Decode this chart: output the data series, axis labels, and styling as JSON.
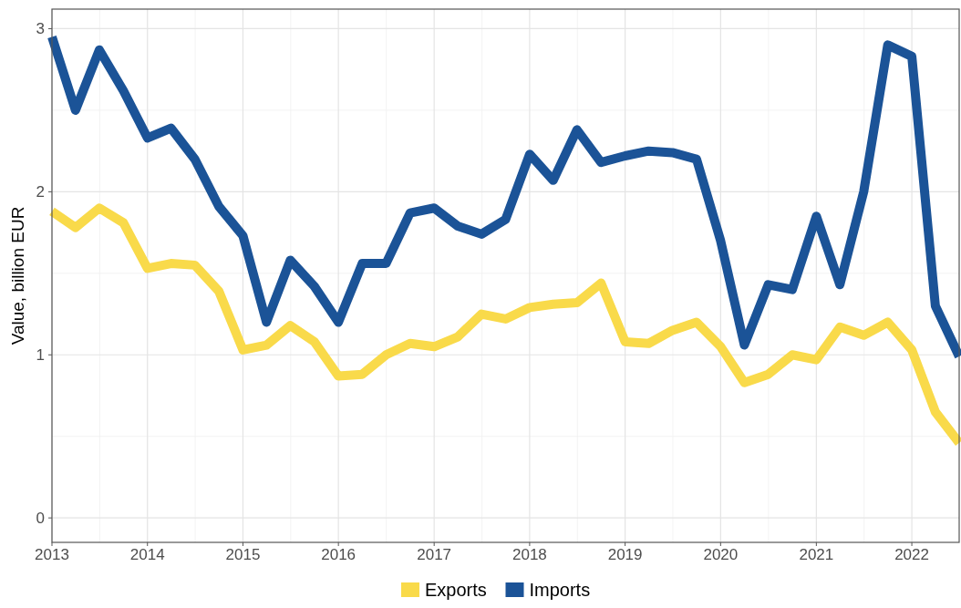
{
  "chart_data": {
    "type": "line",
    "ylabel": "Value, billion EUR",
    "x": [
      "2013-01",
      "2013-04",
      "2013-07",
      "2013-10",
      "2014-01",
      "2014-04",
      "2014-07",
      "2014-10",
      "2015-01",
      "2015-04",
      "2015-07",
      "2015-10",
      "2016-01",
      "2016-04",
      "2016-07",
      "2016-10",
      "2017-01",
      "2017-04",
      "2017-07",
      "2017-10",
      "2018-01",
      "2018-04",
      "2018-07",
      "2018-10",
      "2019-01",
      "2019-04",
      "2019-07",
      "2019-10",
      "2020-01",
      "2020-04",
      "2020-07",
      "2020-10",
      "2021-01",
      "2021-04",
      "2021-07",
      "2021-10",
      "2022-01",
      "2022-04",
      "2022-07"
    ],
    "series": [
      {
        "name": "Exports",
        "color": "#f9da4a",
        "values": [
          1.88,
          1.78,
          1.9,
          1.81,
          1.53,
          1.56,
          1.55,
          1.39,
          1.03,
          1.06,
          1.18,
          1.08,
          0.87,
          0.88,
          1.0,
          1.07,
          1.05,
          1.11,
          1.25,
          1.22,
          1.29,
          1.31,
          1.32,
          1.44,
          1.08,
          1.07,
          1.15,
          1.2,
          1.05,
          0.83,
          0.88,
          1.0,
          0.97,
          1.17,
          1.12,
          1.2,
          1.03,
          0.65,
          0.46
        ]
      },
      {
        "name": "Imports",
        "color": "#1b5397",
        "values": [
          2.95,
          2.5,
          2.87,
          2.62,
          2.33,
          2.39,
          2.2,
          1.91,
          1.73,
          1.2,
          1.58,
          1.42,
          1.2,
          1.56,
          1.56,
          1.87,
          1.9,
          1.79,
          1.74,
          1.83,
          2.23,
          2.07,
          2.38,
          2.18,
          2.22,
          2.25,
          2.24,
          2.2,
          1.7,
          1.06,
          1.43,
          1.4,
          1.85,
          1.43,
          2.0,
          2.9,
          2.83,
          1.3,
          0.99
        ]
      }
    ],
    "xlim": [
      "2013-01",
      "2022-07"
    ],
    "xticks": [
      {
        "value": "2013-01",
        "label": "2013"
      },
      {
        "value": "2014-01",
        "label": "2014"
      },
      {
        "value": "2015-01",
        "label": "2015"
      },
      {
        "value": "2016-01",
        "label": "2016"
      },
      {
        "value": "2017-01",
        "label": "2017"
      },
      {
        "value": "2018-01",
        "label": "2018"
      },
      {
        "value": "2019-01",
        "label": "2019"
      },
      {
        "value": "2020-01",
        "label": "2020"
      },
      {
        "value": "2021-01",
        "label": "2021"
      },
      {
        "value": "2022-01",
        "label": "2022"
      }
    ],
    "ylim": [
      -0.15,
      3.12
    ],
    "yticks": [
      0,
      1,
      2,
      3
    ],
    "grid": true,
    "legend": "bottom",
    "marker": "none",
    "line_style": "solid"
  }
}
